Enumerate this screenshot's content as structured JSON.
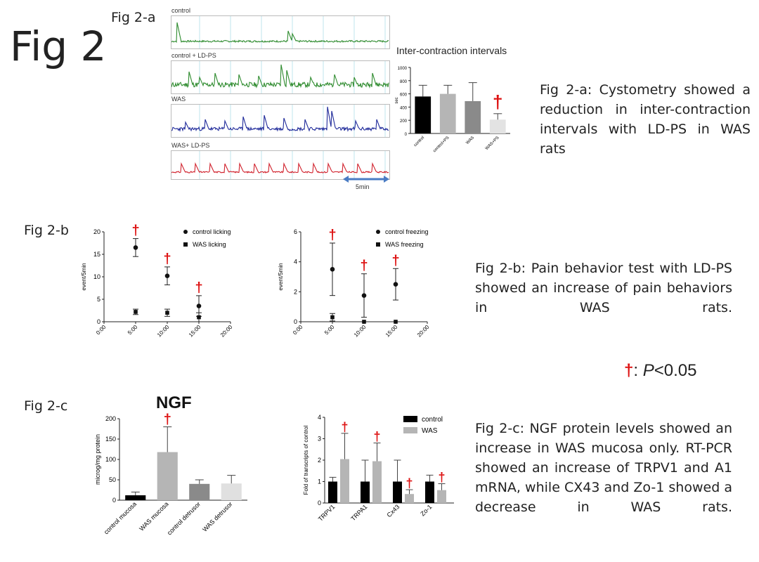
{
  "page": {
    "title": "Fig 2",
    "sig_note": {
      "symbol": "†",
      "text_before": ": ",
      "p": "P",
      "text_after": "<0.05"
    }
  },
  "panel_a": {
    "label": "Fig 2-a",
    "traces": [
      {
        "label": "control",
        "color": "#2e8b2e"
      },
      {
        "label": "control + LD-PS",
        "color": "#2e8b2e"
      },
      {
        "label": "WAS",
        "color": "#1f2a9a"
      },
      {
        "label": "WAS+ LD-PS",
        "color": "#d01f2a"
      }
    ],
    "scale_bar": "5min",
    "caption": "Fig 2-a: Cystometry showed a reduction in inter-contraction intervals with LD-PS in WAS rats"
  },
  "panel_b": {
    "label": "Fig 2-b",
    "caption": "Fig 2-b: Pain behavior test with LD-PS showed an increase of pain behaviors in WAS rats."
  },
  "panel_c": {
    "label": "Fig 2-c",
    "caption": "Fig 2-c: NGF protein levels showed an increase in WAS mucosa only. RT-PCR showed an increase of TRPV1 and A1 mRNA, while CX43 and Zo-1 showed a decrease in WAS rats."
  },
  "chart_data": [
    {
      "id": "ici",
      "type": "bar",
      "title": "Inter-contraction intervals",
      "ylabel": "sec",
      "ylim": [
        0,
        1000
      ],
      "yticks": [
        "0",
        "200",
        "400",
        "600",
        "800",
        "1000"
      ],
      "categories": [
        "control",
        "control+PS",
        "WAS",
        "WAS+PS"
      ],
      "values": [
        560,
        600,
        490,
        210
      ],
      "errors": [
        170,
        130,
        280,
        90
      ],
      "colors": [
        "#000000",
        "#b5b5b5",
        "#8a8a8a",
        "#e3e3e3"
      ],
      "significant": [
        false,
        false,
        false,
        true
      ]
    },
    {
      "id": "licking",
      "type": "scatter",
      "ylabel": "event/5min",
      "ylim": [
        0,
        20
      ],
      "yticks": [
        "0",
        "5",
        "10",
        "15",
        "20"
      ],
      "xlim": [
        0,
        20
      ],
      "xticks": [
        "0:00",
        "5:00",
        "10:00",
        "15:00",
        "20:00"
      ],
      "series": [
        {
          "name": "control licking",
          "marker": "circle",
          "x": [
            5,
            10,
            15
          ],
          "y": [
            16.5,
            10.2,
            3.5
          ],
          "err": [
            2.0,
            2.0,
            2.3
          ],
          "significant": [
            true,
            true,
            true
          ]
        },
        {
          "name": "WAS licking",
          "marker": "square",
          "x": [
            5,
            10,
            15
          ],
          "y": [
            2.2,
            2.0,
            1.0
          ],
          "err": [
            0.6,
            0.8,
            1.0
          ]
        }
      ]
    },
    {
      "id": "freezing",
      "type": "scatter",
      "ylabel": "event/5min",
      "ylim": [
        0,
        6
      ],
      "yticks": [
        "0",
        "2",
        "4",
        "6"
      ],
      "xlim": [
        0,
        20
      ],
      "xticks": [
        "0:00",
        "5:00",
        "10:00",
        "15:00",
        "20:00"
      ],
      "series": [
        {
          "name": "control freezing",
          "marker": "circle",
          "x": [
            5,
            10,
            15
          ],
          "y": [
            3.5,
            1.75,
            2.5
          ],
          "err": [
            1.75,
            1.45,
            1.05
          ],
          "significant": [
            true,
            true,
            true
          ]
        },
        {
          "name": "WAS freezing",
          "marker": "square",
          "x": [
            5,
            10,
            15
          ],
          "y": [
            0.3,
            0.0,
            0.0
          ],
          "err": [
            0.25,
            0.0,
            0.0
          ]
        }
      ]
    },
    {
      "id": "ngf",
      "type": "bar",
      "title": "NGF",
      "ylabel": "microg/mg protein",
      "ylim": [
        0,
        200
      ],
      "yticks": [
        "0",
        "50",
        "100",
        "150",
        "200"
      ],
      "categories": [
        "control mucosa",
        "WAS mucosa",
        "control detrusor",
        "WAS detrusor"
      ],
      "values": [
        12,
        118,
        40,
        41
      ],
      "errors": [
        8,
        62,
        10,
        20
      ],
      "colors": [
        "#000000",
        "#b5b5b5",
        "#8a8a8a",
        "#e0e0e0"
      ],
      "significant": [
        false,
        true,
        false,
        false
      ]
    },
    {
      "id": "rtpcr",
      "type": "bar",
      "ylabel": "Fold of transcripts of control",
      "ylim": [
        0,
        4
      ],
      "yticks": [
        "0",
        "1",
        "2",
        "3",
        "4"
      ],
      "categories": [
        "TRPV1",
        "TRPA1",
        "Cx43",
        "Zo-1"
      ],
      "series": [
        {
          "name": "control",
          "color": "#000000",
          "values": [
            1.0,
            1.0,
            1.0,
            1.0
          ],
          "errors": [
            0.2,
            1.0,
            1.0,
            0.3
          ]
        },
        {
          "name": "WAS",
          "color": "#b5b5b5",
          "values": [
            2.05,
            1.95,
            0.42,
            0.6
          ],
          "errors": [
            1.2,
            0.85,
            0.2,
            0.3
          ],
          "significant": [
            true,
            true,
            true,
            true
          ]
        }
      ]
    }
  ]
}
